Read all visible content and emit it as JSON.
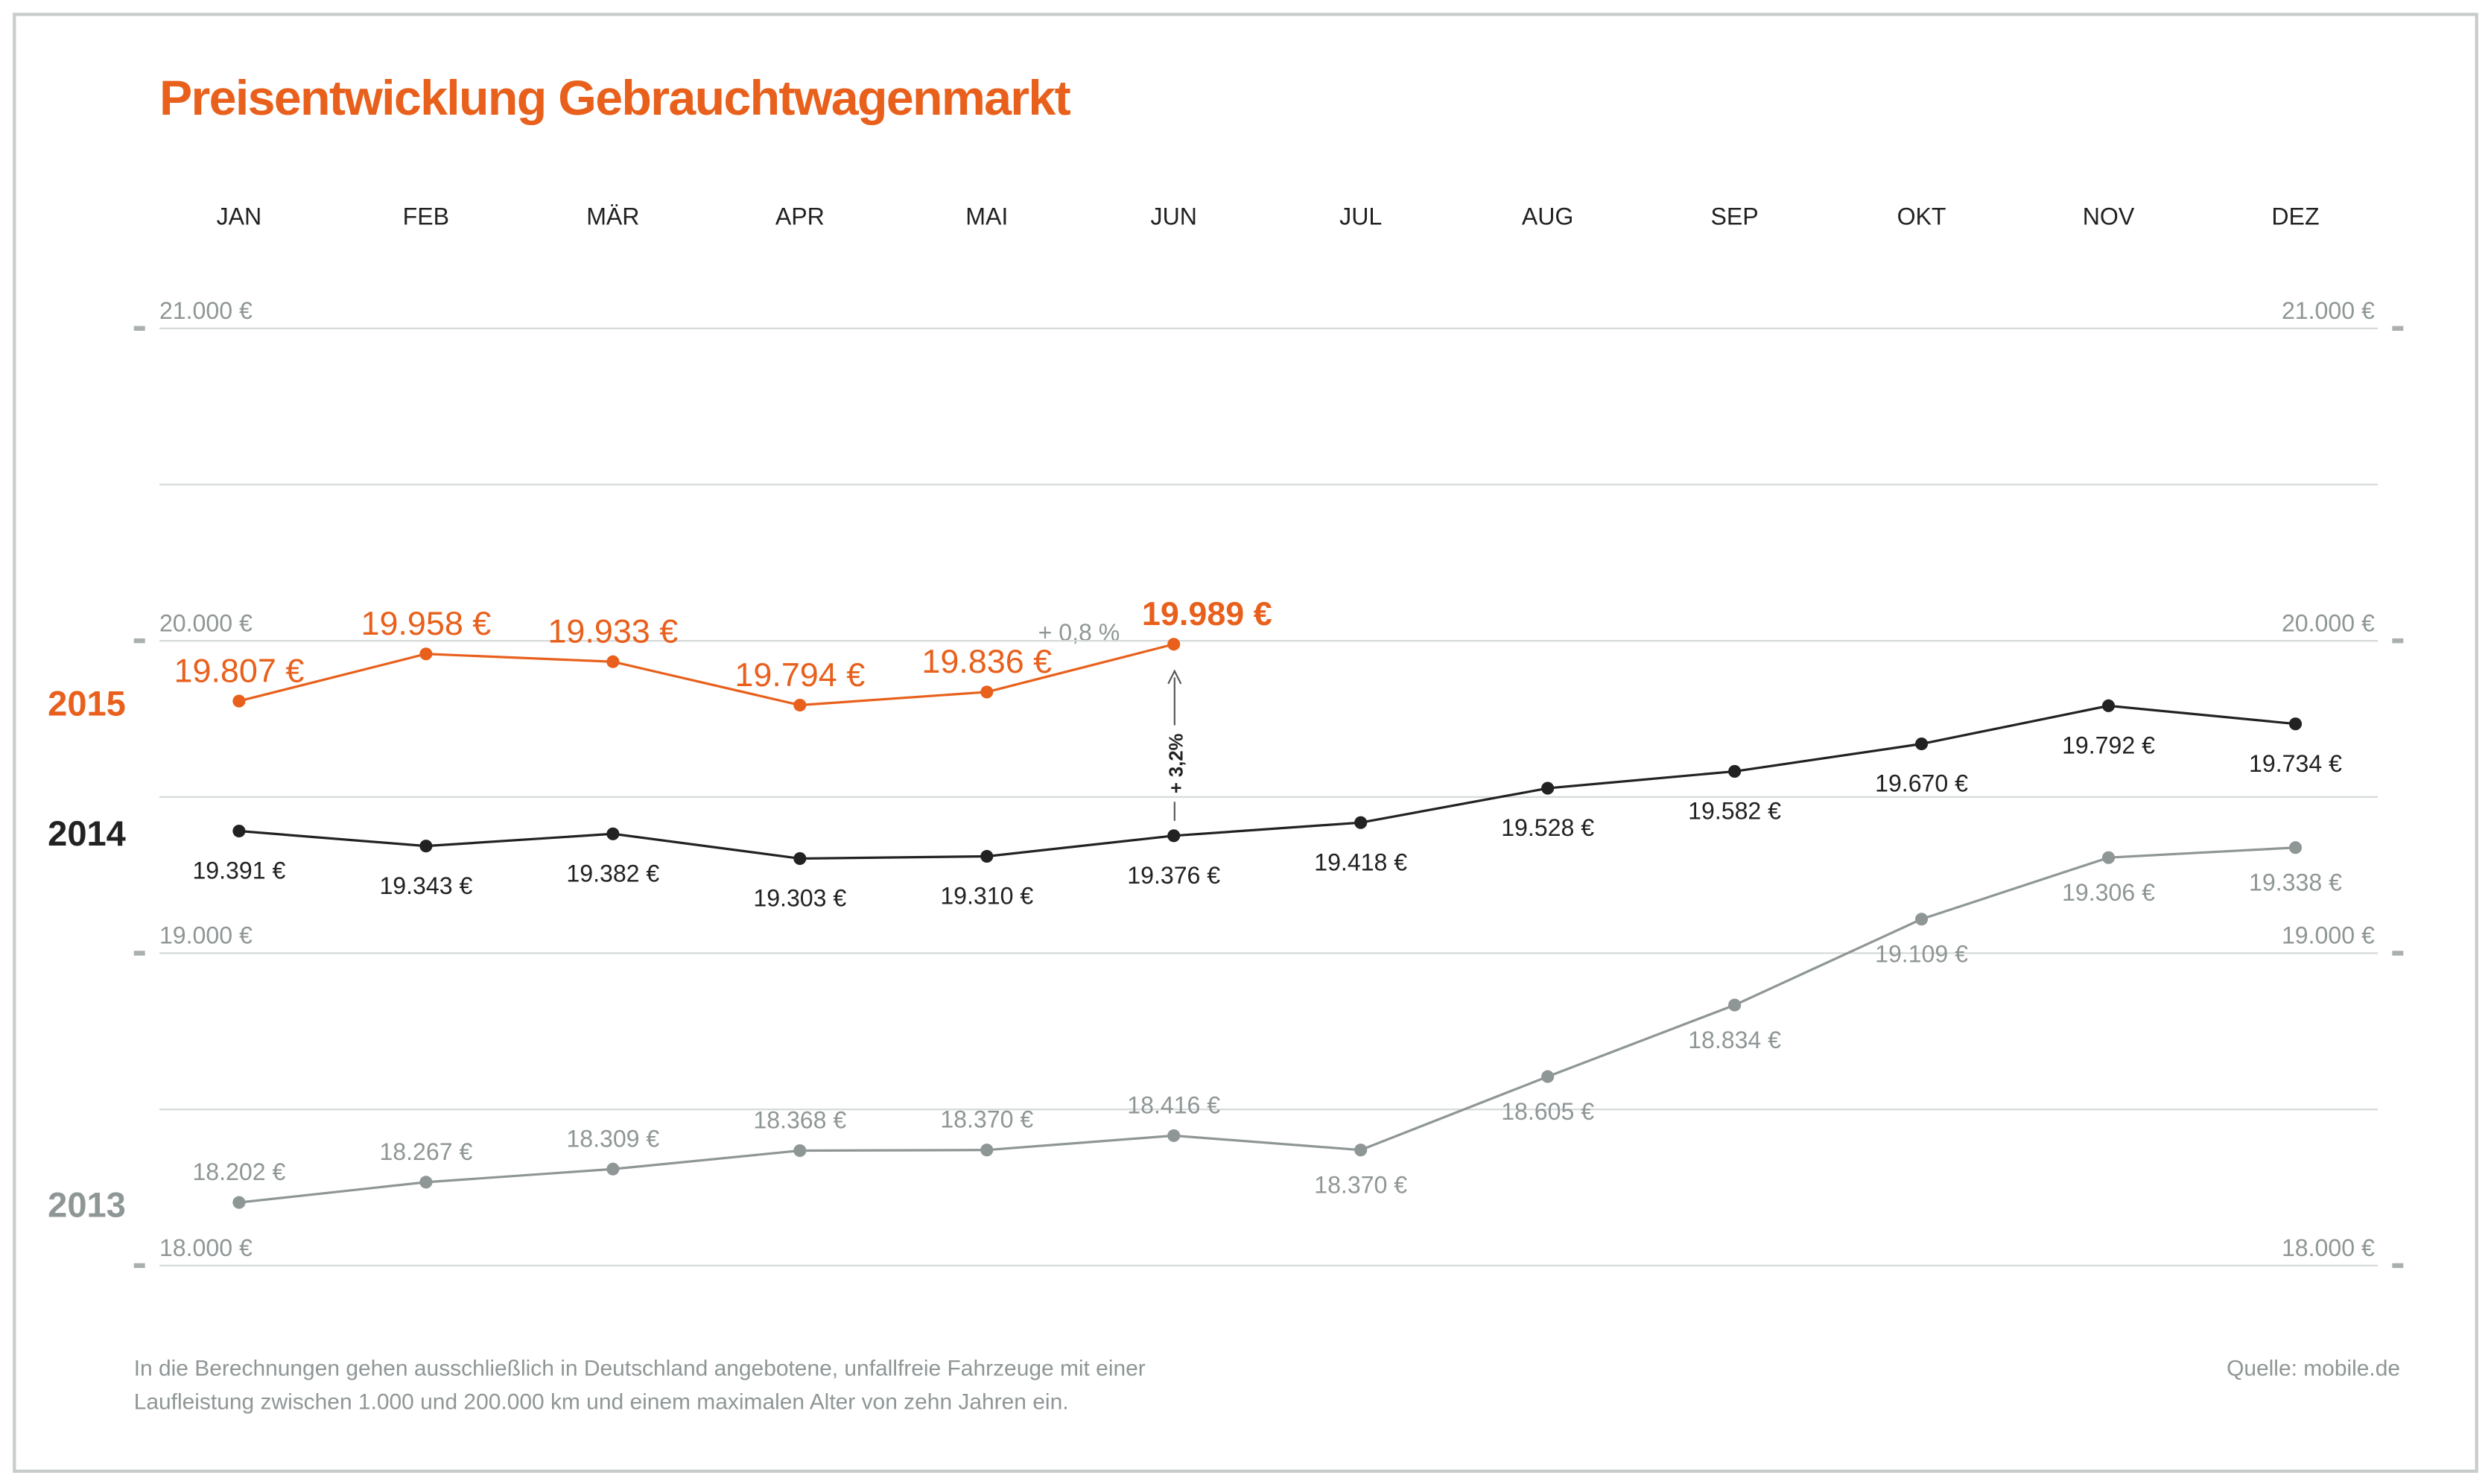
{
  "chart_data": {
    "type": "line",
    "title": "Preisentwicklung Gebrauchtwagenmarkt",
    "categories": [
      "JAN",
      "FEB",
      "MÄR",
      "APR",
      "MAI",
      "JUN",
      "JUL",
      "AUG",
      "SEP",
      "OKT",
      "NOV",
      "DEZ"
    ],
    "series": [
      {
        "name": "2015",
        "color": "#e8601c",
        "values": [
          19807,
          19958,
          19933,
          19794,
          19836,
          19989,
          null,
          null,
          null,
          null,
          null,
          null
        ],
        "value_labels": [
          "19.807 €",
          "19.958 €",
          "19.933 €",
          "19.794 €",
          "19.836 €",
          "19.989 €",
          null,
          null,
          null,
          null,
          null,
          null
        ]
      },
      {
        "name": "2014",
        "color": "#222222",
        "values": [
          19391,
          19343,
          19382,
          19303,
          19310,
          19376,
          19418,
          19528,
          19582,
          19670,
          19792,
          19734
        ],
        "value_labels": [
          "19.391 €",
          "19.343 €",
          "19.382 €",
          "19.303 €",
          "19.310 €",
          "19.376 €",
          "19.418 €",
          "19.528 €",
          "19.582 €",
          "19.670 €",
          "19.792 €",
          "19.734 €"
        ]
      },
      {
        "name": "2013",
        "color": "#8f9696",
        "values": [
          18202,
          18267,
          18309,
          18368,
          18370,
          18416,
          18370,
          18605,
          18834,
          19109,
          19306,
          19338
        ],
        "value_labels": [
          "18.202 €",
          "18.267 €",
          "18.309 €",
          "18.368 €",
          "18.370 €",
          "18.416 €",
          "18.370 €",
          "18.605 €",
          "18.834 €",
          "19.109 €",
          "19.306 €",
          "19.338 €"
        ]
      }
    ],
    "ylim": [
      18000,
      21000
    ],
    "yticks": [
      {
        "value": 18000,
        "label": "18.000 €"
      },
      {
        "value": 19000,
        "label": "19.000 €"
      },
      {
        "value": 20000,
        "label": "20.000 €"
      },
      {
        "value": 21000,
        "label": "21.000 €"
      }
    ],
    "minor_yticks": [
      18500,
      19500,
      20500
    ],
    "grid": true,
    "annotations": [
      "+ 0,8 %",
      "+ 3,2%"
    ],
    "footnote": [
      "In die Berechnungen gehen ausschließlich in Deutschland angebotene, unfallfreie Fahrzeuge mit einer",
      "Laufleistung zwischen 1.000 und 200.000 km und einem maximalen Alter von zehn Jahren ein."
    ],
    "source": "Quelle: mobile.de"
  }
}
